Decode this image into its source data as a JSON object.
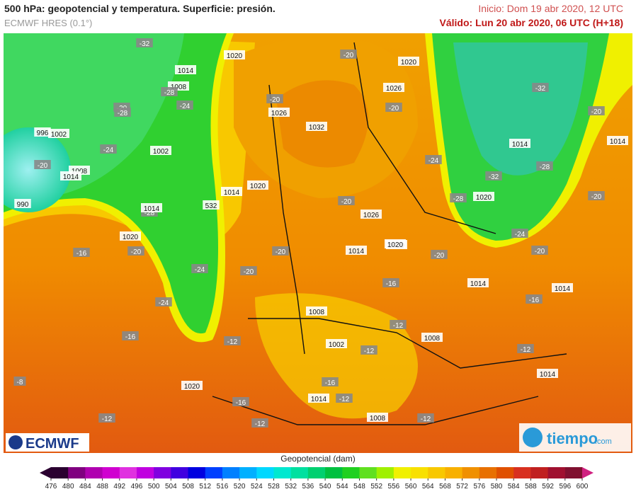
{
  "header": {
    "title": "500 hPa: geopotencial y temperatura. Superficie: presión.",
    "model": "ECMWF HRES (0.1°)",
    "init": "Inicio: Dom 19 abr 2020, 12 UTC",
    "valid": "Válido: Lun 20 abr 2020, 06 UTC (H+18)"
  },
  "map_labels": [
    "-32",
    "1020",
    "1014",
    "1008",
    "-28",
    "-24",
    "996",
    "1002",
    "-20",
    "1008",
    "-20",
    "1014",
    "990",
    "-24",
    "1002",
    "-28",
    "1014",
    "-28",
    "1020",
    "-16",
    "-20",
    "-24",
    "-24",
    "532",
    "1014",
    "1020",
    "-20",
    "1026",
    "-20",
    "1032",
    "-20",
    "1020",
    "1026",
    "-20",
    "-32",
    "-24",
    "1014",
    "-28",
    "-20",
    "1014",
    "-20",
    "1026",
    "-20",
    "1020",
    "-32",
    "1020",
    "-28",
    "-24",
    "-20",
    "1014",
    "1020",
    "-20",
    "-20",
    "-16",
    "1014",
    "1014",
    "-16",
    "1008",
    "-12",
    "1008",
    "-16",
    "1002",
    "-12",
    "-12",
    "-12",
    "1014",
    "-8",
    "-16",
    "1020",
    "-16",
    "1014",
    "-12",
    "-12",
    "-12",
    "1008",
    "-12"
  ],
  "logos": {
    "left": "ECMWF",
    "right": "tiempo",
    "right_suffix": ".com"
  },
  "colorbar": {
    "title": "Geopotencial (dam)",
    "ticks": [
      476,
      480,
      484,
      488,
      492,
      496,
      500,
      504,
      508,
      512,
      516,
      520,
      524,
      528,
      532,
      536,
      540,
      544,
      548,
      552,
      556,
      560,
      564,
      568,
      572,
      576,
      580,
      584,
      588,
      592,
      596,
      600
    ],
    "colors": [
      "#2a0030",
      "#800080",
      "#b000b0",
      "#d000d0",
      "#e030e0",
      "#c000e0",
      "#8000e0",
      "#4000e0",
      "#0000e0",
      "#0040ff",
      "#0080ff",
      "#00b0ff",
      "#00d8ff",
      "#00e8d0",
      "#00e0a0",
      "#00d070",
      "#00c040",
      "#20d020",
      "#60e020",
      "#a0f000",
      "#f0f000",
      "#f8e000",
      "#f8c800",
      "#f8b000",
      "#f09000",
      "#e87000",
      "#e05000",
      "#d83020",
      "#c02020",
      "#a01030",
      "#801030"
    ]
  }
}
